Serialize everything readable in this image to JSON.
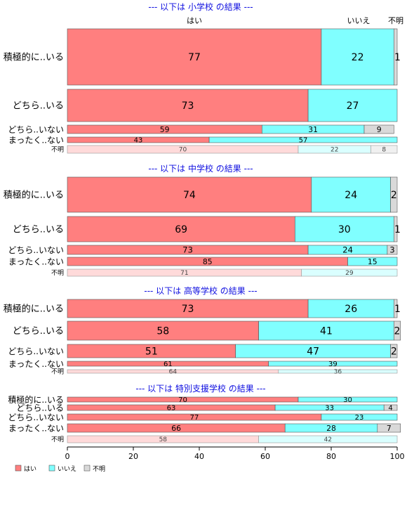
{
  "chart_data": {
    "type": "bar",
    "orientation": "horizontal",
    "stacked": true,
    "xlim": [
      0,
      100
    ],
    "x_ticks": [
      0,
      20,
      40,
      60,
      80,
      100
    ],
    "grid": false,
    "legend_position": "bottom-left",
    "legend": [
      {
        "name": "はい",
        "color": "#FF7F7F"
      },
      {
        "name": "いいえ",
        "color": "#80FFFF"
      },
      {
        "name": "不明",
        "color": "#D9D9D9"
      }
    ],
    "top_column_labels": [
      "はい",
      "いいえ",
      "不明"
    ],
    "panels": [
      {
        "title": "--- 以下は 小学校 の結果 ---",
        "rows": [
          {
            "label": "積極的に..いる",
            "values": [
              77,
              22,
              1
            ]
          },
          {
            "label": "どちら..いる",
            "values": [
              73,
              27,
              0
            ]
          },
          {
            "label": "どちら..いない",
            "values": [
              59,
              31,
              9
            ]
          },
          {
            "label": "まったく..ない",
            "values": [
              43,
              57,
              0
            ]
          },
          {
            "label": "不明",
            "values": [
              70,
              22,
              8
            ],
            "faded": true
          }
        ]
      },
      {
        "title": "--- 以下は 中学校 の結果 ---",
        "rows": [
          {
            "label": "積極的に..いる",
            "values": [
              74,
              24,
              2
            ]
          },
          {
            "label": "どちら..いる",
            "values": [
              69,
              30,
              1
            ]
          },
          {
            "label": "どちら..いない",
            "values": [
              73,
              24,
              3
            ]
          },
          {
            "label": "まったく..ない",
            "values": [
              85,
              15,
              0
            ]
          },
          {
            "label": "不明",
            "values": [
              71,
              29,
              0
            ],
            "faded": true
          }
        ]
      },
      {
        "title": "--- 以下は 高等学校 の結果 ---",
        "rows": [
          {
            "label": "積極的に..いる",
            "values": [
              73,
              26,
              1
            ]
          },
          {
            "label": "どちら..いる",
            "values": [
              58,
              41,
              2
            ]
          },
          {
            "label": "どちら..いない",
            "values": [
              51,
              47,
              2
            ]
          },
          {
            "label": "まったく..ない",
            "values": [
              61,
              39,
              0
            ]
          },
          {
            "label": "不明",
            "values": [
              64,
              36,
              0
            ],
            "faded": true
          }
        ]
      },
      {
        "title": "--- 以下は 特別支援学校 の結果 ---",
        "rows": [
          {
            "label": "積極的に..いる",
            "values": [
              70,
              30,
              0
            ]
          },
          {
            "label": "どちら..いる",
            "values": [
              63,
              33,
              4
            ]
          },
          {
            "label": "どちら..いない",
            "values": [
              77,
              23,
              0
            ]
          },
          {
            "label": "まったく..ない",
            "values": [
              66,
              28,
              7
            ]
          },
          {
            "label": "不明",
            "values": [
              58,
              42,
              0
            ],
            "faded": true
          }
        ]
      }
    ]
  }
}
